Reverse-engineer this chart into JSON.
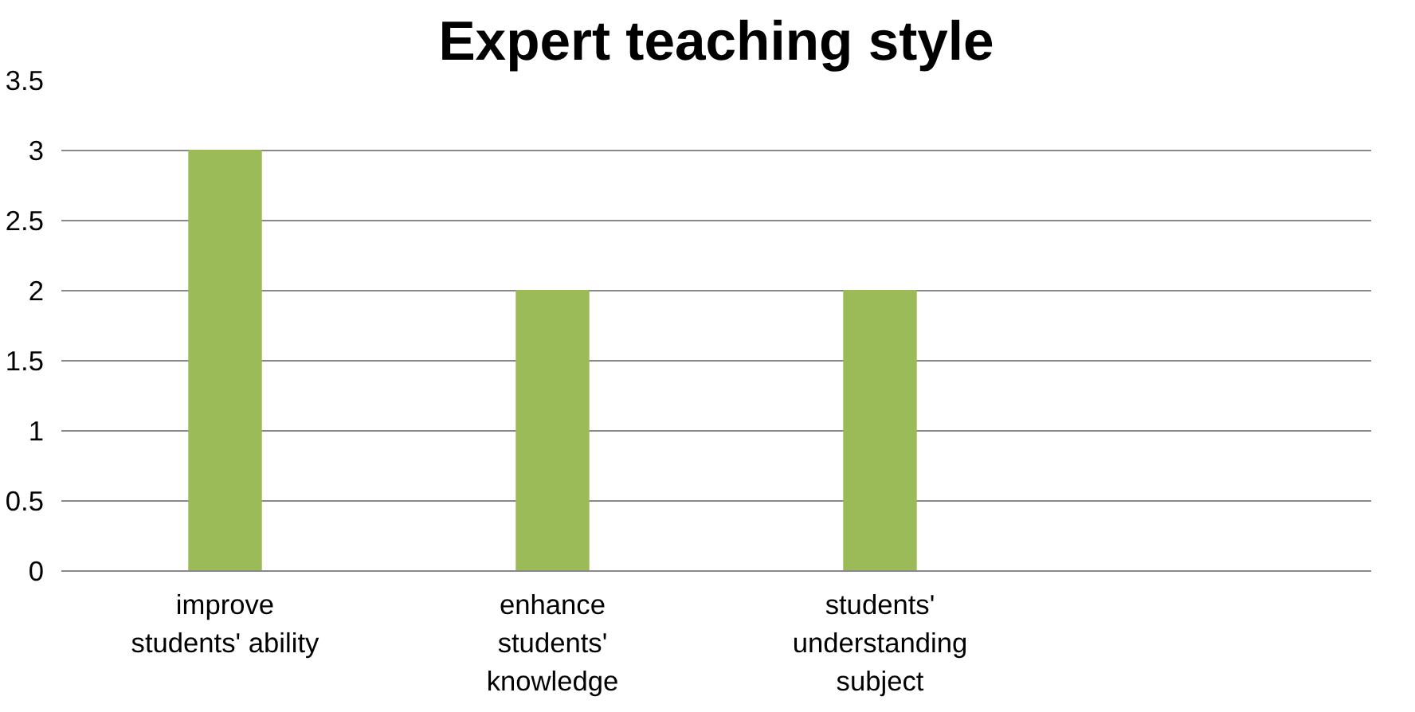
{
  "chart_data": {
    "type": "bar",
    "title": "Expert teaching style",
    "categories": [
      "improve\nstudents' ability",
      "enhance\nstudents'\nknowledge",
      "students'\nunderstanding\nsubject",
      null
    ],
    "values": [
      3,
      2,
      2,
      null
    ],
    "color": "#9bbb59",
    "ylim": [
      0,
      3.5
    ],
    "yticks": [
      0,
      0.5,
      1,
      1.5,
      2,
      2.5,
      3,
      3.5
    ],
    "grid": "y"
  }
}
